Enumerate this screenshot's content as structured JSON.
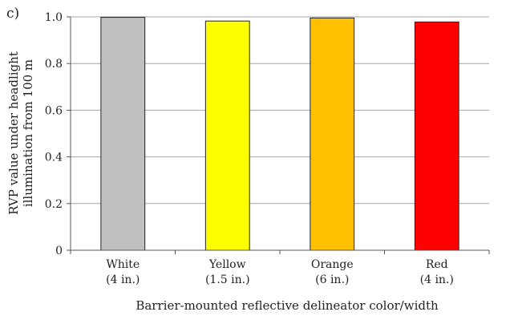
{
  "panel_label": "c)",
  "chart_data": {
    "type": "bar",
    "categories": [
      [
        "White",
        "(4 in.)"
      ],
      [
        "Yellow",
        "(1.5 in.)"
      ],
      [
        "Orange",
        "(6 in.)"
      ],
      [
        "Red",
        "(4 in.)"
      ]
    ],
    "values": [
      0.998,
      0.982,
      0.995,
      0.978
    ],
    "colors": [
      "#c0c0c0",
      "#ffff00",
      "#ffc000",
      "#ff0000"
    ],
    "ylabel_lines": [
      "RVP value under headlight",
      "illumination from 100 m"
    ],
    "xlabel": "Barrier-mounted reflective delineator color/width",
    "ylim": [
      0,
      1.0
    ],
    "yticks": [
      "0",
      "0.2",
      "0.4",
      "0.6",
      "0.8",
      "1.0"
    ],
    "grid": true,
    "legend": "none"
  }
}
